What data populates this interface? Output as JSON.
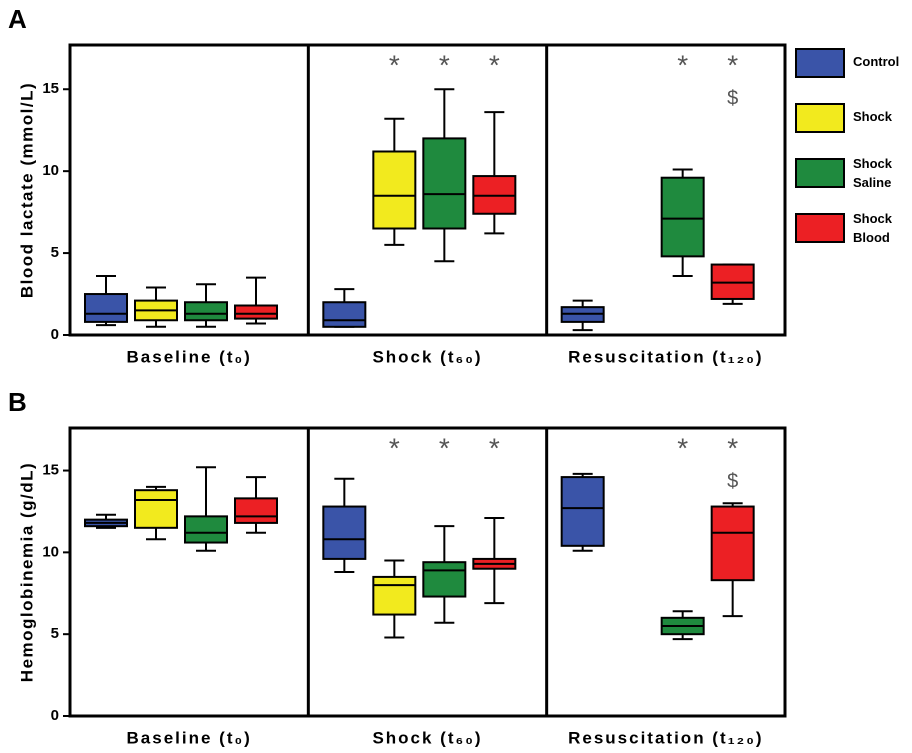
{
  "chart_data": [
    {
      "type": "box",
      "panel_label": "A",
      "y_label": "Blood lactate (mmol/L)",
      "legend": true,
      "categories": [
        "Baseline (t₀)",
        "Shock (t₆₀)",
        "Resuscitation (t₁₂₀)"
      ],
      "ylim": [
        0,
        17.7
      ],
      "yticks": [
        0,
        5,
        10,
        15
      ],
      "series": [
        {
          "name": "Control",
          "color": "#3a54a8",
          "values": [
            {
              "min": 0.6,
              "q1": 0.8,
              "median": 1.3,
              "q3": 2.5,
              "max": 3.6
            },
            {
              "min": 0.5,
              "q1": 0.5,
              "median": 0.9,
              "q3": 2.0,
              "max": 2.8
            },
            {
              "min": 0.3,
              "q1": 0.8,
              "median": 1.3,
              "q3": 1.7,
              "max": 2.1
            }
          ]
        },
        {
          "name": "Shock",
          "color": "#f2ea1e",
          "values": [
            {
              "min": 0.5,
              "q1": 0.9,
              "median": 1.5,
              "q3": 2.1,
              "max": 2.9
            },
            {
              "min": 5.5,
              "q1": 6.5,
              "median": 8.5,
              "q3": 11.2,
              "max": 13.2
            },
            null
          ],
          "annotations": [
            [],
            [
              "*"
            ],
            []
          ]
        },
        {
          "name": "Shock Saline",
          "color": "#1f8a3e",
          "values": [
            {
              "min": 0.5,
              "q1": 0.9,
              "median": 1.3,
              "q3": 2.0,
              "max": 3.1
            },
            {
              "min": 4.5,
              "q1": 6.5,
              "median": 8.6,
              "q3": 12.0,
              "max": 15.0
            },
            {
              "min": 3.6,
              "q1": 4.8,
              "median": 7.1,
              "q3": 9.6,
              "max": 10.1
            }
          ],
          "annotations": [
            [],
            [
              "*"
            ],
            [
              "*"
            ]
          ]
        },
        {
          "name": "Shock Blood",
          "color": "#ec2024",
          "values": [
            {
              "min": 0.7,
              "q1": 1.0,
              "median": 1.3,
              "q3": 1.8,
              "max": 3.5
            },
            {
              "min": 6.2,
              "q1": 7.4,
              "median": 8.5,
              "q3": 9.7,
              "max": 13.6
            },
            {
              "min": 1.9,
              "q1": 2.2,
              "median": 3.2,
              "q3": 4.3,
              "max": 4.3
            }
          ],
          "annotations": [
            [],
            [
              "*"
            ],
            [
              "*",
              "$"
            ]
          ]
        }
      ]
    },
    {
      "type": "box",
      "panel_label": "B",
      "y_label": "Hemoglobinemia (g/dL)",
      "legend": false,
      "categories": [
        "Baseline (t₀)",
        "Shock (t₆₀)",
        "Resuscitation (t₁₂₀)"
      ],
      "ylim": [
        0,
        17.6
      ],
      "yticks": [
        0,
        5,
        10,
        15
      ],
      "series": [
        {
          "color": "#3a54a8",
          "values": [
            {
              "min": 11.5,
              "q1": 11.6,
              "median": 11.8,
              "q3": 12.0,
              "max": 12.3
            },
            {
              "min": 8.8,
              "q1": 9.6,
              "median": 10.8,
              "q3": 12.8,
              "max": 14.5
            },
            {
              "min": 10.1,
              "q1": 10.4,
              "median": 12.7,
              "q3": 14.6,
              "max": 14.8
            }
          ]
        },
        {
          "color": "#f2ea1e",
          "values": [
            {
              "min": 10.8,
              "q1": 11.5,
              "median": 13.2,
              "q3": 13.8,
              "max": 14.0
            },
            {
              "min": 4.8,
              "q1": 6.2,
              "median": 8.0,
              "q3": 8.5,
              "max": 9.5
            },
            null
          ],
          "annotations": [
            [],
            [
              "*"
            ],
            []
          ]
        },
        {
          "color": "#1f8a3e",
          "values": [
            {
              "min": 10.1,
              "q1": 10.6,
              "median": 11.2,
              "q3": 12.2,
              "max": 15.2
            },
            {
              "min": 5.7,
              "q1": 7.3,
              "median": 8.9,
              "q3": 9.4,
              "max": 11.6
            },
            {
              "min": 4.7,
              "q1": 5.0,
              "median": 5.5,
              "q3": 6.0,
              "max": 6.4
            }
          ],
          "annotations": [
            [],
            [
              "*"
            ],
            [
              "*"
            ]
          ]
        },
        {
          "color": "#ec2024",
          "values": [
            {
              "min": 11.2,
              "q1": 11.8,
              "median": 12.2,
              "q3": 13.3,
              "max": 14.6
            },
            {
              "min": 6.9,
              "q1": 9.0,
              "median": 9.3,
              "q3": 9.6,
              "max": 12.1
            },
            {
              "min": 6.1,
              "q1": 8.3,
              "median": 11.2,
              "q3": 12.8,
              "max": 13.0
            }
          ],
          "annotations": [
            [],
            [
              "*"
            ],
            [
              "*",
              "$"
            ]
          ]
        }
      ]
    }
  ]
}
